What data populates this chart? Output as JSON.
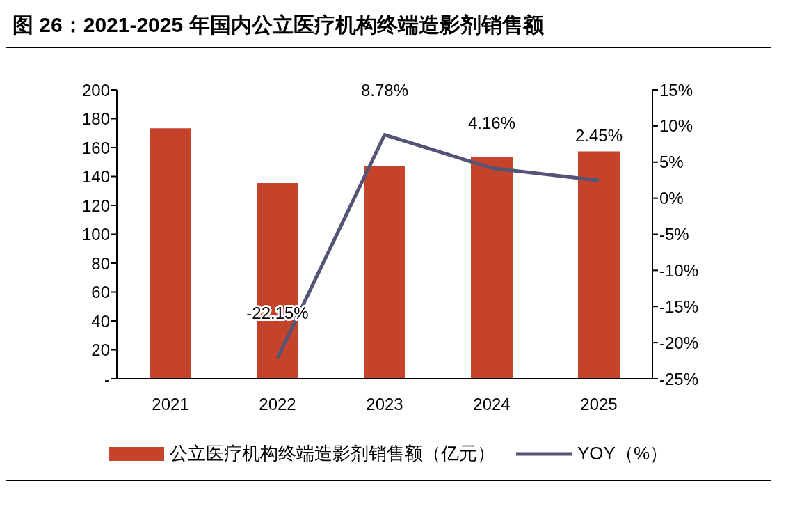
{
  "chart_data": {
    "type": "bar",
    "title": "图 26：2021-2025 年国内公立医疗机构终端造影剂销售额",
    "categories": [
      "2021",
      "2022",
      "2023",
      "2024",
      "2025"
    ],
    "series": [
      {
        "name": "公立医疗机构终端造影剂销售额（亿元）",
        "color": "#c5432a",
        "values": [
          173.4,
          135.4,
          147.4,
          153.6,
          157.3
        ]
      },
      {
        "name": "YOY（%）",
        "type": "line",
        "axis": "y2",
        "color": "#545477",
        "values": [
          null,
          -22.15,
          8.78,
          4.16,
          2.45
        ],
        "value_labels": [
          null,
          "-22.15%",
          "8.78%",
          "4.16%",
          "2.45%"
        ]
      }
    ],
    "ylim": [
      0,
      200
    ],
    "yticks": [
      {
        "value": 0,
        "label": "-"
      },
      20,
      40,
      60,
      80,
      100,
      120,
      140,
      160,
      180,
      200
    ],
    "y2lim": [
      -25,
      15
    ],
    "y2ticks": [
      {
        "value": -25,
        "label": "-25%"
      },
      {
        "value": -20,
        "label": "-20%"
      },
      {
        "value": -15,
        "label": "-15%"
      },
      {
        "value": -10,
        "label": "-10%"
      },
      {
        "value": -5,
        "label": "-5%"
      },
      {
        "value": 0,
        "label": "0%"
      },
      {
        "value": 5,
        "label": "5%"
      },
      {
        "value": 10,
        "label": "10%"
      },
      {
        "value": 15,
        "label": "15%"
      }
    ],
    "grid": false,
    "legend": "bottom",
    "marker": "none",
    "line_style": "solid"
  }
}
